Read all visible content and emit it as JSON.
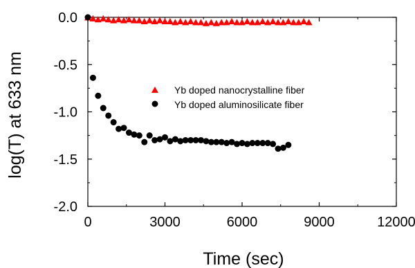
{
  "chart_data": {
    "type": "scatter",
    "xlabel": "Time (sec)",
    "ylabel": "log(T) at 633 nm",
    "xlim": [
      0,
      12000
    ],
    "ylim": [
      -2.0,
      0.0
    ],
    "x_ticks": [
      "0",
      "3000",
      "6000",
      "9000",
      "12000"
    ],
    "y_ticks": [
      "0.0",
      "-0.5",
      "-1.0",
      "-1.5",
      "-2.0"
    ],
    "grid": false,
    "legend_position": "center-right",
    "series": [
      {
        "name": "Yb doped nanocrystalline fiber",
        "marker": "triangle",
        "color": "#ff0000",
        "x": [
          0,
          200,
          400,
          600,
          800,
          1000,
          1200,
          1400,
          1600,
          1800,
          2000,
          2200,
          2400,
          2600,
          2800,
          3000,
          3200,
          3400,
          3600,
          3800,
          4000,
          4200,
          4400,
          4600,
          4800,
          5000,
          5200,
          5400,
          5600,
          5800,
          6000,
          6200,
          6400,
          6600,
          6800,
          7000,
          7200,
          7400,
          7600,
          7800,
          8000,
          8200,
          8400,
          8600
        ],
        "y": [
          0.0,
          -0.01,
          -0.02,
          -0.01,
          -0.02,
          -0.03,
          -0.02,
          -0.03,
          -0.02,
          -0.03,
          -0.03,
          -0.04,
          -0.03,
          -0.04,
          -0.03,
          -0.04,
          -0.04,
          -0.05,
          -0.04,
          -0.05,
          -0.04,
          -0.05,
          -0.05,
          -0.06,
          -0.05,
          -0.06,
          -0.05,
          -0.05,
          -0.04,
          -0.05,
          -0.05,
          -0.04,
          -0.05,
          -0.05,
          -0.04,
          -0.05,
          -0.04,
          -0.05,
          -0.05,
          -0.04,
          -0.05,
          -0.05,
          -0.04,
          -0.05
        ]
      },
      {
        "name": "Yb doped aluminosilicate fiber",
        "marker": "circle",
        "color": "#000000",
        "x": [
          0,
          200,
          400,
          600,
          800,
          1000,
          1200,
          1400,
          1600,
          1800,
          2000,
          2200,
          2400,
          2600,
          2800,
          3000,
          3200,
          3400,
          3600,
          3800,
          4000,
          4200,
          4400,
          4600,
          4800,
          5000,
          5200,
          5400,
          5600,
          5800,
          6000,
          6200,
          6400,
          6600,
          6800,
          7000,
          7200,
          7400,
          7600,
          7800
        ],
        "y": [
          0.0,
          -0.64,
          -0.83,
          -0.96,
          -1.04,
          -1.11,
          -1.18,
          -1.17,
          -1.22,
          -1.24,
          -1.25,
          -1.32,
          -1.25,
          -1.3,
          -1.29,
          -1.27,
          -1.31,
          -1.29,
          -1.31,
          -1.3,
          -1.3,
          -1.3,
          -1.3,
          -1.31,
          -1.32,
          -1.32,
          -1.32,
          -1.33,
          -1.32,
          -1.34,
          -1.33,
          -1.34,
          -1.33,
          -1.33,
          -1.33,
          -1.33,
          -1.34,
          -1.39,
          -1.38,
          -1.35
        ]
      }
    ]
  }
}
